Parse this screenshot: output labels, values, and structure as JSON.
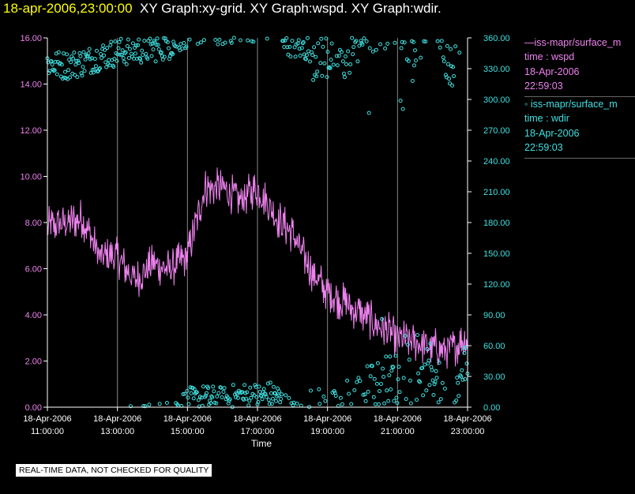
{
  "header": {
    "timestamp": "18-apr-2006,23:00:00",
    "graphs": "XY Graph:xy-grid.  XY Graph:wspd.  XY Graph:wdir."
  },
  "legend": {
    "series1": {
      "label": "—iss-mapr/surface_m",
      "line1": "time : wspd",
      "date": "18-Apr-2006",
      "time": "22:59:03"
    },
    "series2": {
      "label": "◦ iss-mapr/surface_m",
      "line1": "time : wdir",
      "date": "18-Apr-2006",
      "time": "22:59:03"
    }
  },
  "footer": {
    "quality_note": "REAL-TIME DATA, NOT CHECKED FOR QUALITY"
  },
  "colors": {
    "wspd": "#ee82ee",
    "wdir": "#40e0e0",
    "grid": "#888888",
    "axis": "#ffffff"
  },
  "chart_data": {
    "type": "line",
    "xlabel": "Time",
    "xlim": [
      11,
      23
    ],
    "x_ticks": [
      {
        "value": 11,
        "date": "18-Apr-2006",
        "time": "11:00:00"
      },
      {
        "value": 13,
        "date": "18-Apr-2006",
        "time": "13:00:00"
      },
      {
        "value": 15,
        "date": "18-Apr-2006",
        "time": "15:00:00"
      },
      {
        "value": 17,
        "date": "18-Apr-2006",
        "time": "17:00:00"
      },
      {
        "value": 19,
        "date": "18-Apr-2006",
        "time": "19:00:00"
      },
      {
        "value": 21,
        "date": "18-Apr-2006",
        "time": "21:00:00"
      },
      {
        "value": 23,
        "date": "18-Apr-2006",
        "time": "23:00:00"
      }
    ],
    "left_axis": {
      "name": "wspd",
      "ylim": [
        0,
        16
      ],
      "ticks": [
        "0.00",
        "2.00",
        "4.00",
        "6.00",
        "8.00",
        "10.00",
        "12.00",
        "14.00",
        "16.00"
      ]
    },
    "right_axis": {
      "name": "wdir",
      "ylim": [
        0,
        360
      ],
      "ticks": [
        "0.00",
        "30.00",
        "60.00",
        "90.00",
        "120.00",
        "150.00",
        "180.00",
        "210.00",
        "240.00",
        "270.00",
        "300.00",
        "330.00",
        "360.00"
      ]
    },
    "series": [
      {
        "name": "wspd",
        "style": "line",
        "axis": "left",
        "x": [
          11.0,
          11.5,
          12.0,
          12.5,
          13.0,
          13.5,
          14.0,
          14.5,
          15.0,
          15.5,
          16.0,
          16.5,
          17.0,
          17.5,
          18.0,
          18.5,
          19.0,
          19.5,
          20.0,
          20.5,
          21.0,
          21.5,
          22.0,
          22.5,
          23.0
        ],
        "values": [
          7.8,
          8.0,
          8.2,
          6.5,
          6.5,
          5.5,
          6.2,
          6.0,
          6.5,
          9.5,
          9.5,
          9.0,
          9.5,
          8.3,
          7.5,
          6.0,
          5.0,
          4.5,
          4.0,
          3.5,
          3.0,
          2.8,
          2.6,
          2.5,
          3.0
        ],
        "noise": 0.9
      },
      {
        "name": "wdir",
        "style": "markers",
        "axis": "right",
        "x": [
          11.0,
          11.5,
          12.0,
          12.5,
          13.0,
          13.5,
          14.0,
          14.5,
          15.0,
          15.5,
          16.0,
          16.5,
          17.0,
          17.5,
          18.0,
          18.5,
          19.0,
          19.5,
          20.0,
          20.5,
          21.0,
          21.5,
          22.0,
          22.5,
          23.0
        ],
        "values": [
          335,
          333,
          336,
          342,
          346,
          348,
          350,
          353,
          5,
          8,
          6,
          10,
          10,
          12,
          353,
          350,
          348,
          345,
          10,
          18,
          25,
          355,
          40,
          335,
          50
        ],
        "noise": 14
      }
    ]
  }
}
